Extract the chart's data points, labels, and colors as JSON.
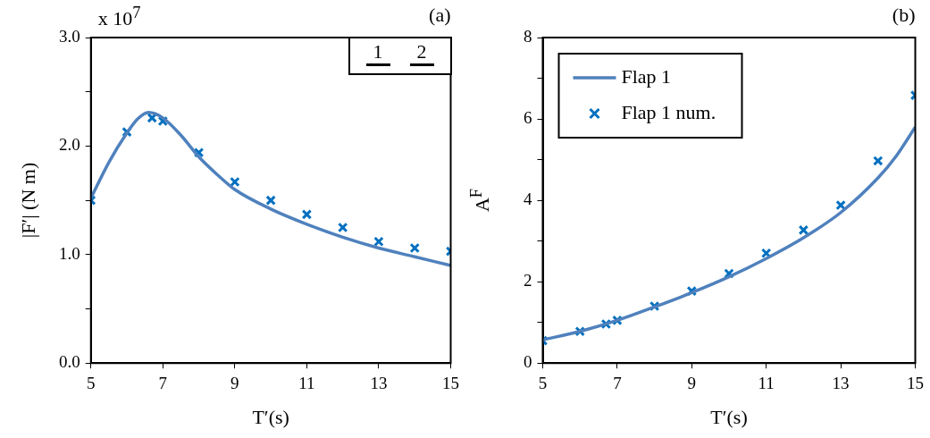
{
  "chart_data": [
    {
      "type": "line",
      "xlabel": "T′(s)",
      "ylabel": "|F′| (N m)",
      "annotations": [
        "(a)",
        "x 10$^{7}$",
        "1",
        "2"
      ],
      "xlim": [
        5,
        15
      ],
      "xticks": [
        5,
        7,
        9,
        11,
        13,
        15
      ],
      "ylim": [
        0,
        3.0
      ],
      "yticks": [
        {
          "value": 0,
          "label": "0.0"
        },
        {
          "value": 0.5,
          "label": null
        },
        {
          "value": 1,
          "label": "1.0"
        },
        {
          "value": 1.5,
          "label": null
        },
        {
          "value": 2,
          "label": "2.0"
        },
        {
          "value": 2.5,
          "label": null
        },
        {
          "value": 3,
          "label": "3.0"
        }
      ],
      "legend": false,
      "series": [
        {
          "color": "#4f81bd",
          "marker": "none",
          "x": [
            5,
            5.5,
            6,
            6.3,
            6.6,
            7,
            7.5,
            8,
            8.5,
            9,
            10,
            11,
            12,
            13,
            14,
            15
          ],
          "values": [
            1.52,
            1.85,
            2.12,
            2.25,
            2.31,
            2.26,
            2.1,
            1.9,
            1.74,
            1.6,
            1.42,
            1.28,
            1.16,
            1.06,
            0.98,
            0.9
          ]
        },
        {
          "type": "scatter",
          "color": "#0070c0",
          "marker": "cross",
          "x": [
            5,
            6,
            6.7,
            7,
            8,
            9,
            10,
            11,
            12,
            13,
            14,
            15
          ],
          "values": [
            1.5,
            2.13,
            2.26,
            2.23,
            1.94,
            1.67,
            1.5,
            1.37,
            1.25,
            1.12,
            1.06,
            1.03
          ]
        }
      ]
    },
    {
      "type": "line",
      "xlabel": "T′(s)",
      "ylabel": "A$^{F}$",
      "annotations": [
        "(b)"
      ],
      "xlim": [
        5,
        15
      ],
      "xticks": [
        5,
        7,
        9,
        11,
        13,
        15
      ],
      "ylim": [
        0,
        8
      ],
      "yticks": [
        0,
        {
          "value": 1,
          "label": null
        },
        2,
        {
          "value": 3,
          "label": null
        },
        4,
        {
          "value": 5,
          "label": null
        },
        6,
        {
          "value": 7,
          "label": null
        },
        8
      ],
      "legend": "top left",
      "series": [
        {
          "name": "Flap 1",
          "color": "#4f81bd",
          "marker": "none",
          "x": [
            5,
            6,
            7,
            8,
            9,
            10,
            11,
            12,
            13,
            14,
            14.5,
            15
          ],
          "values": [
            0.57,
            0.78,
            1.05,
            1.38,
            1.73,
            2.12,
            2.57,
            3.08,
            3.7,
            4.55,
            5.1,
            5.8
          ]
        },
        {
          "type": "scatter",
          "name": "Flap 1 num.",
          "color": "#0070c0",
          "marker": "cross",
          "x": [
            5,
            6,
            6.7,
            7,
            8,
            9,
            10,
            11,
            12,
            13,
            14,
            15
          ],
          "values": [
            0.55,
            0.78,
            0.96,
            1.05,
            1.4,
            1.77,
            2.2,
            2.7,
            3.27,
            3.88,
            4.97,
            6.58
          ]
        }
      ]
    }
  ]
}
